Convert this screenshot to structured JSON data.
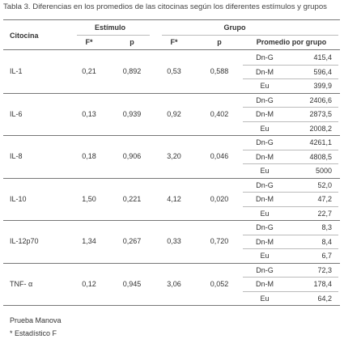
{
  "title": "Tabla 3. Diferencias en los promedios de las citocinas según los diferentes estímulos y grupos",
  "table": {
    "headers": {
      "citocina": "Citocina",
      "estimulo": "Estímulo",
      "grupo": "Grupo",
      "sub": [
        "F*",
        "p",
        "F*",
        "p",
        "Promedio por grupo"
      ]
    },
    "rows": [
      {
        "name": "IL-1",
        "estimulo": [
          "0,21",
          "0,892"
        ],
        "grupo": [
          "0,53",
          "0,588"
        ],
        "groups": [
          [
            "Dn-G",
            "415,4"
          ],
          [
            "Dn-M",
            "596,4"
          ],
          [
            "Eu",
            "399,9"
          ]
        ]
      },
      {
        "name": "IL-6",
        "estimulo": [
          "0,13",
          "0,939"
        ],
        "grupo": [
          "0,92",
          "0,402"
        ],
        "groups": [
          [
            "Dn-G",
            "2406,6"
          ],
          [
            "Dn-M",
            "2873,5"
          ],
          [
            "Eu",
            "2008,2"
          ]
        ]
      },
      {
        "name": "IL-8",
        "estimulo": [
          "0,18",
          "0,906"
        ],
        "grupo": [
          "3,20",
          "0,046"
        ],
        "groups": [
          [
            "Dn-G",
            "4261,1"
          ],
          [
            "Dn-M",
            "4808,5"
          ],
          [
            "Eu",
            "5000"
          ]
        ]
      },
      {
        "name": "IL-10",
        "estimulo": [
          "1,50",
          "0,221"
        ],
        "grupo": [
          "4,12",
          "0,020"
        ],
        "groups": [
          [
            "Dn-G",
            "52,0"
          ],
          [
            "Dn-M",
            "47,2"
          ],
          [
            "Eu",
            "22,7"
          ]
        ]
      },
      {
        "name": "IL-12p70",
        "estimulo": [
          "1,34",
          "0,267"
        ],
        "grupo": [
          "0,33",
          "0,720"
        ],
        "groups": [
          [
            "Dn-G",
            "8,3"
          ],
          [
            "Dn-M",
            "8,4"
          ],
          [
            "Eu",
            "6,7"
          ]
        ]
      },
      {
        "name": "TNF- α",
        "estimulo": [
          "0,12",
          "0,945"
        ],
        "grupo": [
          "3,06",
          "0,052"
        ],
        "groups": [
          [
            "Dn-G",
            "72,3"
          ],
          [
            "Dn-M",
            "178,4"
          ],
          [
            "Eu",
            "64,2"
          ]
        ]
      }
    ]
  },
  "footer": [
    "Prueba Manova",
    "* Estadístico F"
  ]
}
